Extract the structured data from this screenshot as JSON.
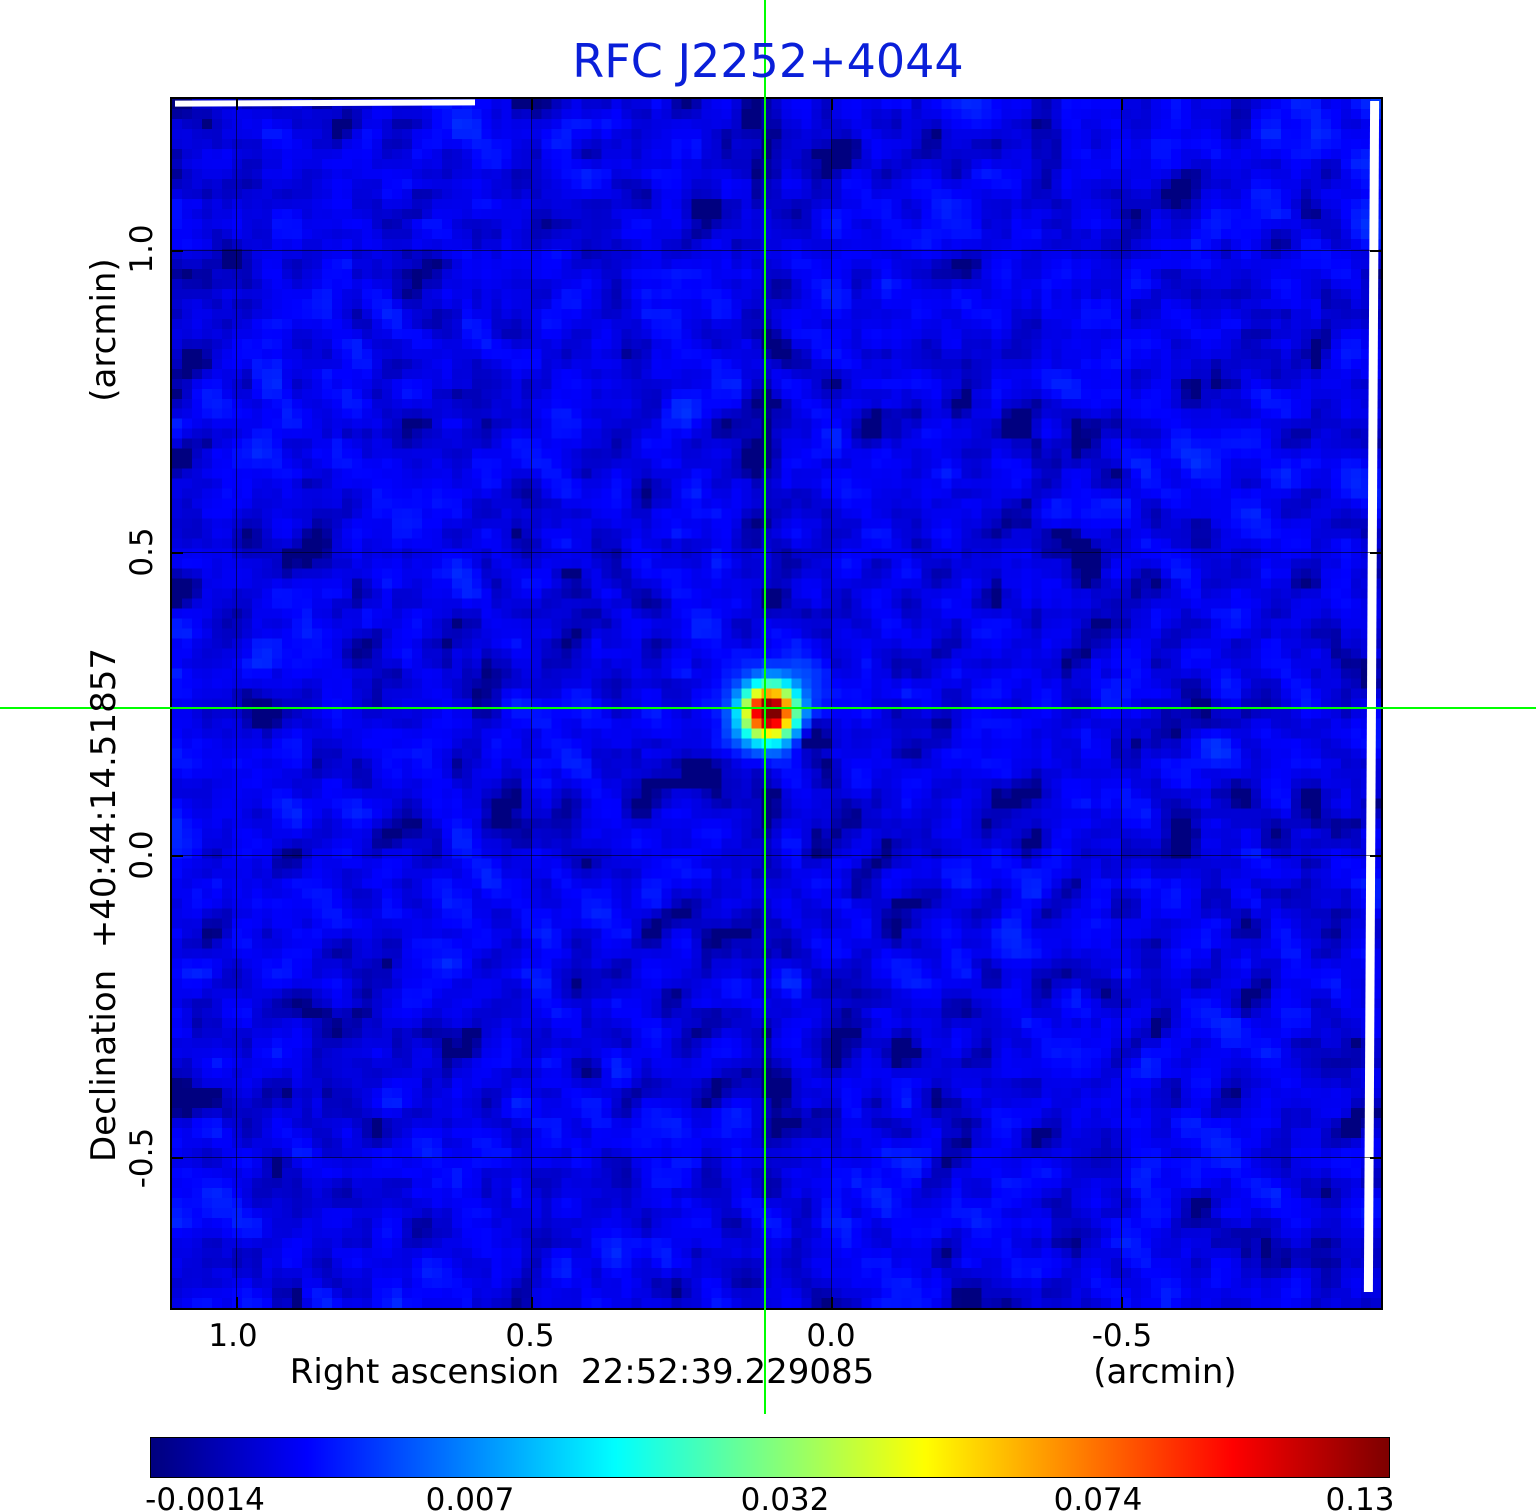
{
  "title": "RFC J2252+4044",
  "colors": {
    "title": "#0a1fd9",
    "crosshair": "#00ff00",
    "background": "#ffffff",
    "axis": "#000000"
  },
  "axes": {
    "y_label": "Declination  +40:44:14.51857",
    "y_unit": "(arcmin)",
    "x_label": "Right ascension  22:52:39.229085",
    "x_unit": "(arcmin)",
    "x_tick_labels": [
      "1.0",
      "0.5",
      "0.0",
      "-0.5"
    ],
    "y_tick_labels": [
      "1.0",
      "0.5",
      "0.0",
      "-0.5"
    ]
  },
  "colorbar": {
    "tick_labels": [
      "-0.0014",
      "0.007",
      "0.032",
      "0.074",
      "0.13"
    ]
  },
  "chart_data": {
    "type": "heatmap",
    "title": "RFC J2252+4044",
    "xlabel": "Right ascension 22:52:39.229085 (arcmin)",
    "ylabel": "Declination +40:44:14.51857 (arcmin)",
    "x_axis": {
      "ticks_arcmin": [
        1.0,
        0.5,
        0.0,
        -0.5
      ],
      "range_arcmin": [
        1.11,
        -0.93
      ]
    },
    "y_axis": {
      "ticks_arcmin": [
        1.0,
        0.5,
        0.0,
        -0.5
      ],
      "range_arcmin": [
        1.25,
        -0.75
      ]
    },
    "colorbar": {
      "vmin": -0.0014,
      "vmax": 0.13,
      "ticks": [
        -0.0014,
        0.007,
        0.032,
        0.074,
        0.13
      ],
      "stretch": "sqrt",
      "colormap": "jet"
    },
    "source": {
      "ra_offset_arcmin": 0.11,
      "dec_offset_arcmin": 0.24,
      "peak": 0.13,
      "frac_x": 0.49,
      "frac_y": 0.503
    },
    "crosshair_color": "#00ff00",
    "grid_size": 121,
    "noise_sigma": 0.0005,
    "seed": 20250913
  }
}
